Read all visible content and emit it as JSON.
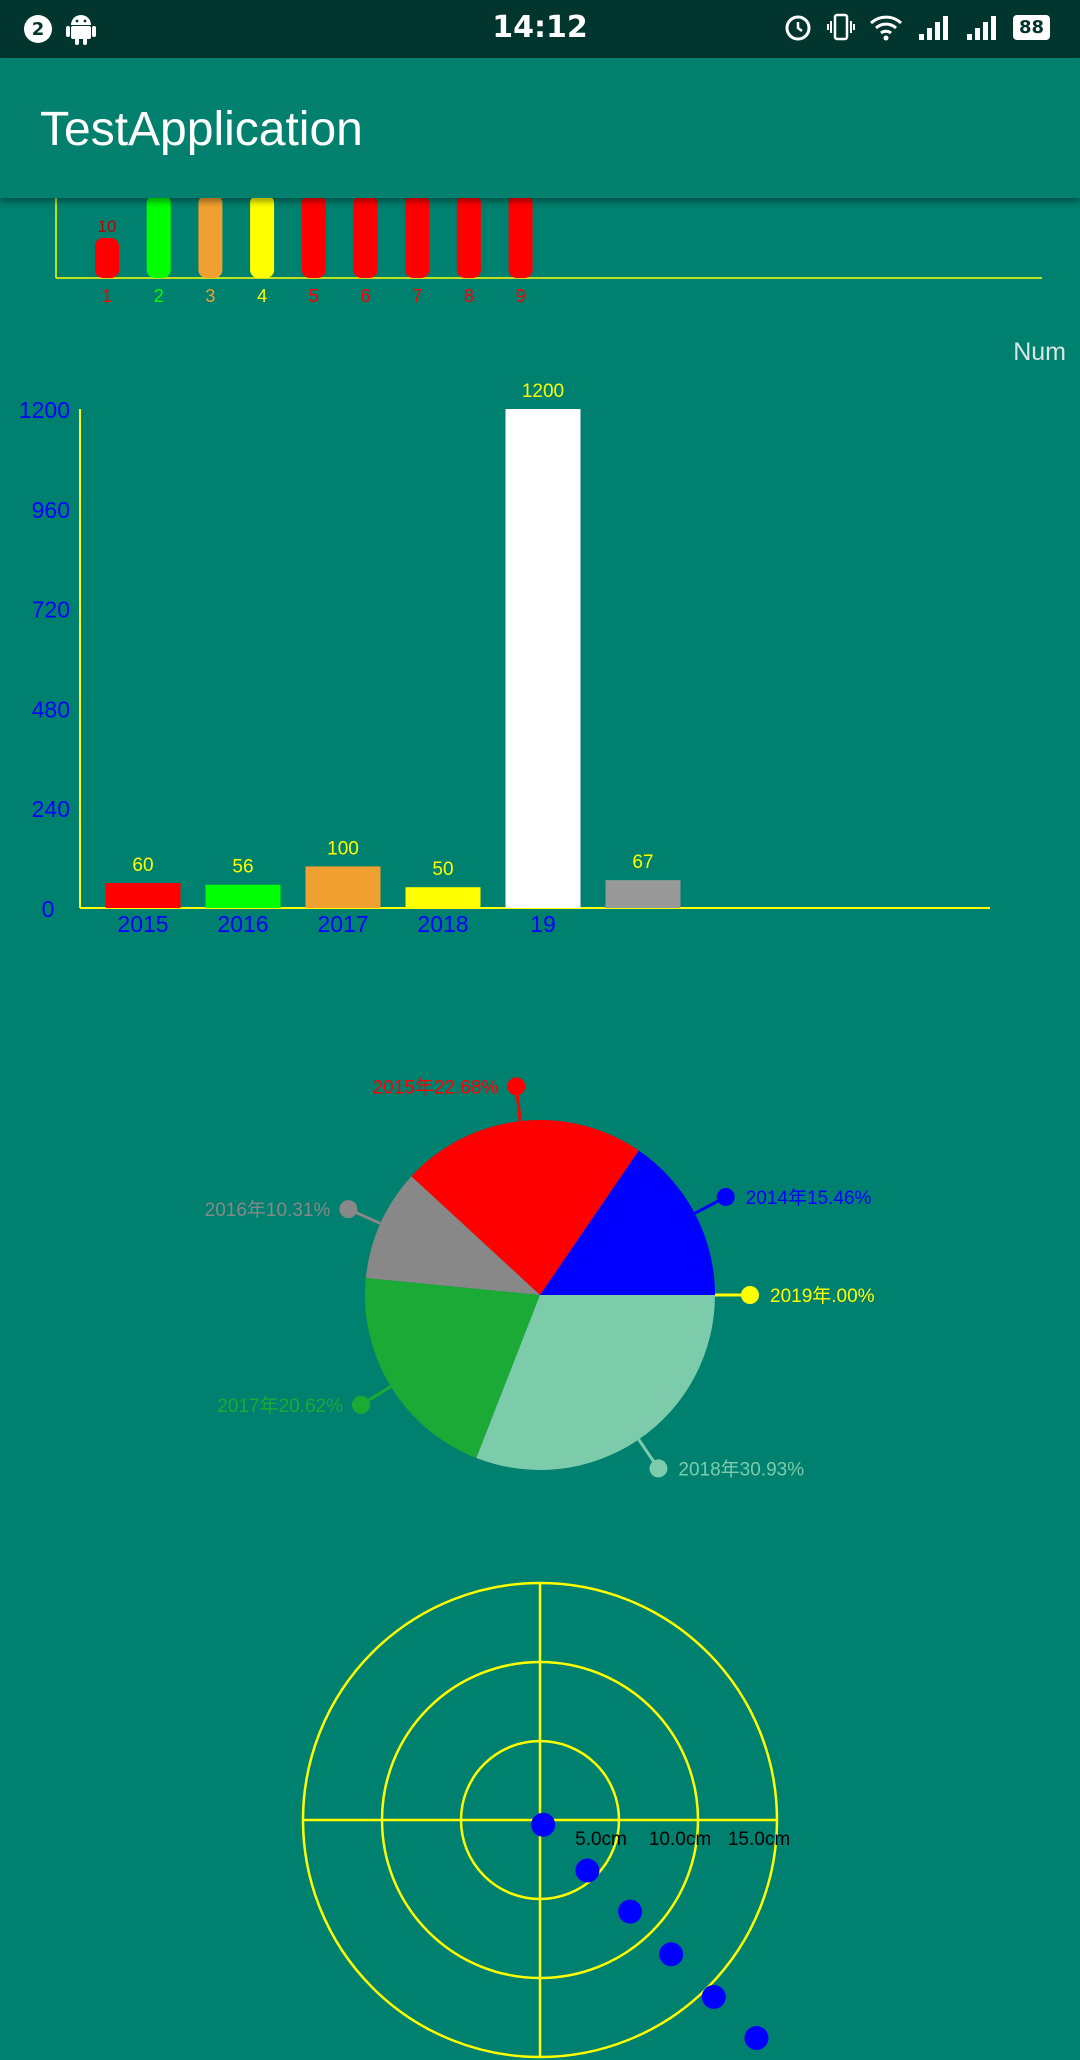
{
  "status_bar": {
    "notification_count": "2",
    "time": "14:12",
    "battery": "88",
    "icons": [
      "android-icon",
      "alarm-icon",
      "vibrate-icon",
      "wifi-icon",
      "signal-icon",
      "signal-icon"
    ]
  },
  "app_bar": {
    "title": "TestApplication"
  },
  "chart_data": [
    {
      "type": "bar",
      "categories": [
        "1",
        "2",
        "3",
        "4",
        "5",
        "6",
        "7",
        "8",
        "9"
      ],
      "values": [
        10,
        null,
        null,
        null,
        null,
        null,
        null,
        null,
        null
      ],
      "colors": [
        "#FF0000",
        "#00FF00",
        "#F0A030",
        "#FFFF00",
        "#FF0000",
        "#FF0000",
        "#FF0000",
        "#FF0000",
        "#FF0000"
      ],
      "data_labels": [
        "10",
        "",
        "",
        "",
        "",
        "",
        "",
        "",
        ""
      ]
    },
    {
      "type": "bar",
      "categories": [
        "2015",
        "2016",
        "2017",
        "2018",
        "19",
        ""
      ],
      "values": [
        60,
        56,
        100,
        50,
        1200,
        67
      ],
      "data_labels": [
        "60",
        "56",
        "100",
        "50",
        "1200",
        "67"
      ],
      "colors": [
        "#FF0000",
        "#00FF00",
        "#F0A030",
        "#FFFF00",
        "#FFFFFF",
        "#999999"
      ],
      "ylabel": "Num",
      "ylim": [
        0,
        1200
      ],
      "yticks": [
        "0",
        "240",
        "480",
        "720",
        "960",
        "1200"
      ]
    },
    {
      "type": "pie",
      "labels": [
        "2014年15.46%",
        "2015年22.68%",
        "2016年10.31%",
        "2017年20.62%",
        "2018年30.93%",
        "2019年.00%"
      ],
      "values": [
        15.46,
        22.68,
        10.31,
        20.62,
        30.93,
        0.0
      ],
      "colors": [
        "#0000FF",
        "#FF0000",
        "#888888",
        "#1BAA35",
        "#7CCBAA",
        "#FFFF00"
      ]
    },
    {
      "type": "scatter",
      "rings": [
        "5.0cm",
        "10.0cm",
        "15.0cm"
      ],
      "points": [
        {
          "x": 0.2,
          "y": -0.3
        },
        {
          "x": 3.0,
          "y": -3.2
        },
        {
          "x": 5.7,
          "y": -5.8
        },
        {
          "x": 8.3,
          "y": -8.5
        },
        {
          "x": 11.0,
          "y": -11.2
        },
        {
          "x": 13.7,
          "y": -13.8
        }
      ],
      "point_color": "#0000FF",
      "grid_color": "#FFFF00"
    }
  ]
}
